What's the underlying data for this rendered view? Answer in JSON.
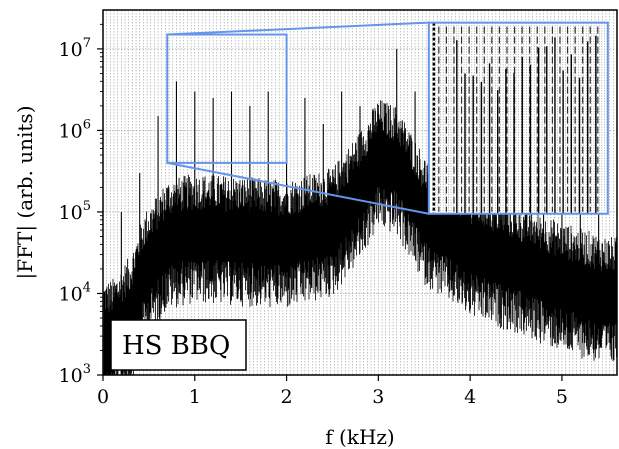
{
  "chart_data": {
    "type": "line",
    "title": "",
    "xlabel": "f (kHz)",
    "ylabel": "|FFT| (arb. units)",
    "xlim": [
      0,
      5.6
    ],
    "ylim": [
      1000,
      30000000
    ],
    "yscale": "log",
    "grid": true,
    "x_ticks": [
      {
        "value": 0,
        "label": "0"
      },
      {
        "value": 1,
        "label": "1"
      },
      {
        "value": 2,
        "label": "2"
      },
      {
        "value": 3,
        "label": "3"
      },
      {
        "value": 4,
        "label": "4"
      },
      {
        "value": 5,
        "label": "5"
      }
    ],
    "y_ticks": [
      {
        "value": 1000,
        "base": "10",
        "exp": "3"
      },
      {
        "value": 10000,
        "base": "10",
        "exp": "4"
      },
      {
        "value": 100000,
        "base": "10",
        "exp": "5"
      },
      {
        "value": 1000000,
        "base": "10",
        "exp": "6"
      },
      {
        "value": 10000000,
        "base": "10",
        "exp": "7"
      }
    ],
    "series": [
      {
        "color": "#000000",
        "description": "noisy broadband spectrum envelope with harmonic peaks",
        "envelope": {
          "x": [
            0.1,
            0.3,
            0.45,
            0.7,
            1.0,
            1.5,
            2.0,
            2.5,
            2.8,
            3.0,
            3.2,
            3.5,
            4.0,
            4.5,
            5.0,
            5.5
          ],
          "y": [
            3000,
            6000,
            20000,
            50000,
            60000,
            55000,
            50000,
            70000,
            200000,
            500000,
            400000,
            100000,
            40000,
            25000,
            15000,
            10000
          ]
        },
        "harmonic_peaks": {
          "x": [
            0.2,
            0.4,
            0.6,
            0.8,
            1.0,
            1.2,
            1.4,
            1.6,
            1.8,
            2.0,
            2.2,
            2.4,
            2.6,
            2.8,
            3.0,
            3.2,
            3.4,
            3.6,
            3.8,
            4.0,
            4.2,
            4.4,
            4.6,
            4.8,
            5.0,
            5.2,
            5.4
          ],
          "y": [
            100000,
            300000,
            1500000,
            4000000,
            3000000,
            2500000,
            3000000,
            2000000,
            3000000,
            1500000,
            2500000,
            1200000,
            3000000,
            2000000,
            1500000,
            10000000,
            3000000,
            3000000,
            2000000,
            1500000,
            1000000,
            800000,
            600000,
            400000,
            300000,
            200000,
            150000
          ]
        }
      }
    ],
    "inset": {
      "source_x": [
        0.7,
        2.0
      ],
      "source_y": [
        400000,
        15000000
      ],
      "display_x": [
        3.55,
        5.5
      ],
      "display_y": [
        95000,
        21000000
      ],
      "line_color": "#6495ED"
    },
    "annotation": {
      "text": "HS BBQ",
      "position": "bottom-left"
    }
  }
}
